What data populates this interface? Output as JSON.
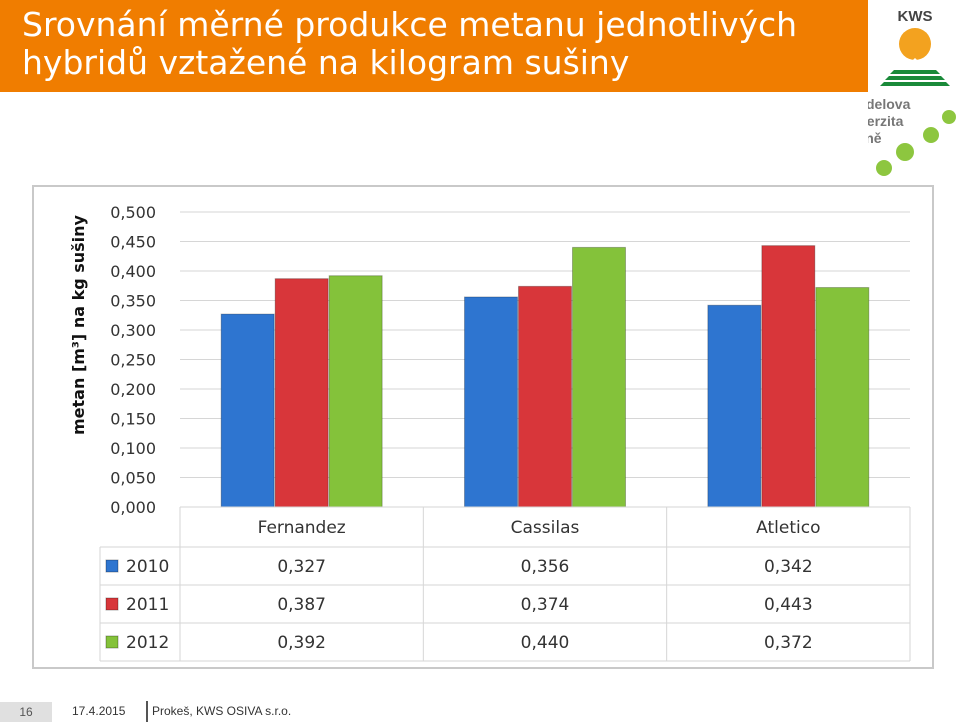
{
  "slide": {
    "title_line1": "Srovnání měrné produkce metanu jednotlivých",
    "title_line2": "hybridů vztažené na kilogram sušiny",
    "logo_text": "KWS",
    "university_line1": "Mendelova",
    "university_line2": "univerzita",
    "university_line3": "v Brně",
    "title_bar_color": "#f07d00"
  },
  "footer": {
    "page_number": "16",
    "date": "17.4.2015",
    "author": "Prokeš, KWS OSIVA s.r.o."
  },
  "chart_data": {
    "type": "bar",
    "ylabel": "metan [m³] na kg sušiny",
    "categories": [
      "Fernandez",
      "Cassilas",
      "Atletico"
    ],
    "ylim": [
      0,
      0.5
    ],
    "yticks": [
      "0,000",
      "0,050",
      "0,100",
      "0,150",
      "0,200",
      "0,250",
      "0,300",
      "0,350",
      "0,400",
      "0,450",
      "0,500"
    ],
    "grid": true,
    "legend": "data table below chart",
    "series": [
      {
        "name": "2010",
        "values": [
          0.327,
          0.356,
          0.342
        ],
        "labels": [
          "0,327",
          "0,356",
          "0,342"
        ],
        "color": "#2e75d0"
      },
      {
        "name": "2011",
        "values": [
          0.387,
          0.374,
          0.443
        ],
        "labels": [
          "0,387",
          "0,374",
          "0,443"
        ],
        "color": "#d8363a"
      },
      {
        "name": "2012",
        "values": [
          0.392,
          0.44,
          0.372
        ],
        "labels": [
          "0,392",
          "0,440",
          "0,372"
        ],
        "color": "#84c23a"
      }
    ]
  }
}
